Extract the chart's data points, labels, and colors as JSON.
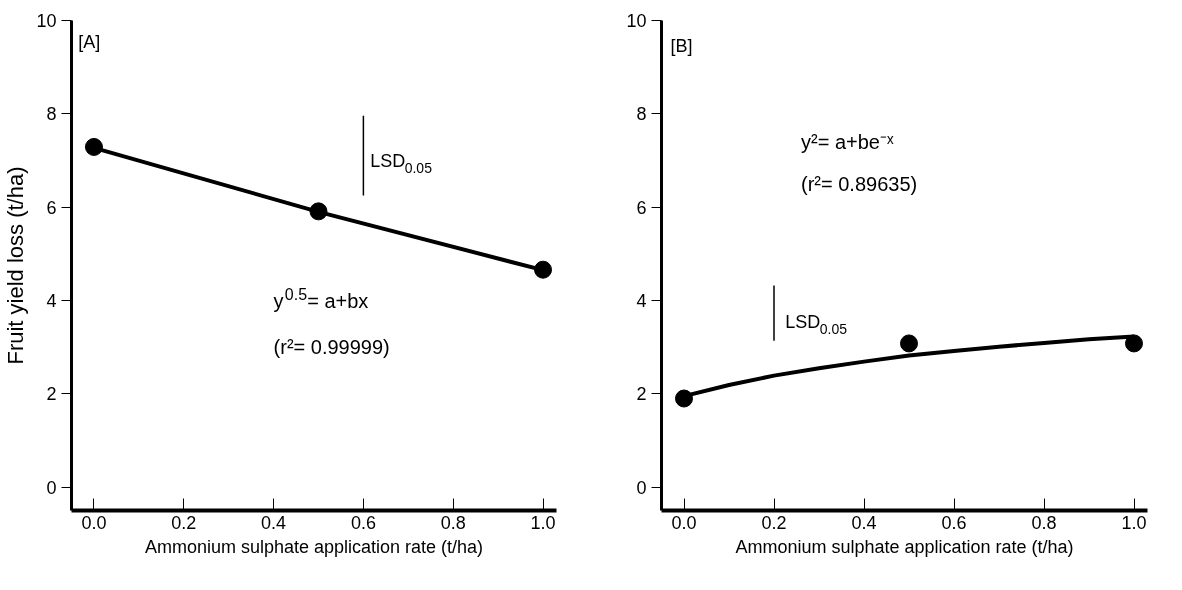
{
  "chart_data": [
    {
      "type": "line",
      "xlabel": "Ammonium sulphate application rate (t/ha)",
      "ylabel": "Fruit yield loss (t/ha)",
      "annotations": [
        "[A]",
        "LSD$_{0.05}$",
        "y$^{0.5}$= a+bx",
        "(r²= 0.99999)"
      ],
      "series": [
        {
          "type": "scatter",
          "color": "#000000",
          "marker": "circle",
          "x": [
            0.0,
            0.5,
            1.0
          ],
          "values": [
            7.29,
            5.91,
            4.66
          ]
        },
        {
          "color": "#000000",
          "marker": "none",
          "x": [
            0.0,
            0.5,
            1.0
          ],
          "values": [
            7.27,
            5.9,
            4.65
          ]
        },
        {
          "color": "#000000",
          "marker": "none",
          "x": [
            0.6,
            0.6
          ],
          "values": [
            6.25,
            7.96
          ]
        }
      ],
      "xlim": [
        -0.05,
        1.03
      ],
      "ylim": [
        -0.5,
        10
      ],
      "xticks": [
        {
          "value": 0,
          "label": "0.0"
        },
        {
          "value": 0.2,
          "label": "0.2"
        },
        {
          "value": 0.4,
          "label": "0.4"
        },
        {
          "value": 0.6,
          "label": "0.6"
        },
        {
          "value": 0.8,
          "label": "0.8"
        },
        {
          "value": 1,
          "label": "1.0"
        }
      ],
      "yticks": [
        0,
        2,
        4,
        6,
        8,
        10
      ],
      "grid": false
    },
    {
      "type": "line",
      "xlabel": "Ammonium sulphate application rate (t/ha)",
      "annotations": [
        "[B]",
        "LSD$_{0.05}$",
        "y²= a+be⁻ˣ",
        "(r²= 0.89635)"
      ],
      "series": [
        {
          "type": "scatter",
          "color": "#000000",
          "marker": "circle",
          "x": [
            0.0,
            0.5,
            1.0
          ],
          "values": [
            1.9,
            3.08,
            3.08
          ]
        },
        {
          "color": "#000000",
          "marker": "none",
          "x": [
            0.0,
            0.1,
            0.2,
            0.3,
            0.4,
            0.5,
            0.6,
            0.7,
            0.8,
            0.9,
            1.0
          ],
          "values": [
            1.95,
            2.19,
            2.39,
            2.55,
            2.69,
            2.82,
            2.92,
            3.01,
            3.09,
            3.17,
            3.23
          ]
        },
        {
          "color": "#000000",
          "marker": "none",
          "x": [
            0.2,
            0.2
          ],
          "values": [
            3.14,
            4.32
          ]
        }
      ],
      "xlim": [
        -0.05,
        1.03
      ],
      "ylim": [
        -0.5,
        10
      ],
      "xticks": [
        {
          "value": 0,
          "label": "0.0"
        },
        {
          "value": 0.2,
          "label": "0.2"
        },
        {
          "value": 0.4,
          "label": "0.4"
        },
        {
          "value": 0.6,
          "label": "0.6"
        },
        {
          "value": 0.8,
          "label": "0.8"
        },
        {
          "value": 1,
          "label": "1.0"
        }
      ],
      "yticks": [
        0,
        2,
        4,
        6,
        8,
        10
      ],
      "grid": false
    }
  ]
}
